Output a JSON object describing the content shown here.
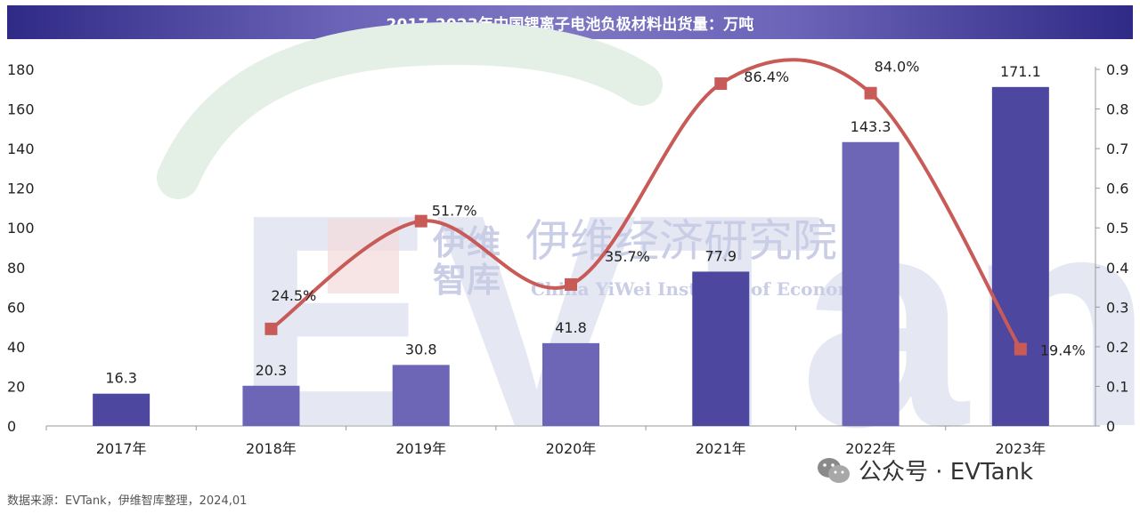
{
  "chart_data": {
    "type": "bar",
    "title": "2017-2023年中国锂离子电池负极材料出货量：万吨",
    "categories": [
      "2017年",
      "2018年",
      "2019年",
      "2020年",
      "2021年",
      "2022年",
      "2023年"
    ],
    "series": [
      {
        "type": "bar",
        "values": [
          16.3,
          20.3,
          30.8,
          41.8,
          77.9,
          143.3,
          171.1
        ],
        "labels": [
          "16.3",
          "20.3",
          "30.8",
          "41.8",
          "77.9",
          "143.3",
          "171.1"
        ],
        "axis": "left",
        "colors": [
          "#4e47a0",
          "#6d65b5",
          "#6d65b5",
          "#6d65b5",
          "#4e47a0",
          "#6d65b5",
          "#4e47a0"
        ]
      },
      {
        "type": "line",
        "values": [
          null,
          0.245,
          0.517,
          0.357,
          0.864,
          0.84,
          0.194
        ],
        "labels": [
          "",
          "24.5%",
          "51.7%",
          "35.7%",
          "86.4%",
          "84.0%",
          "19.4%"
        ],
        "axis": "right",
        "color": "#c85a57"
      }
    ],
    "yleft": {
      "min": 0,
      "max": 180,
      "ticks": [
        "0",
        "20",
        "40",
        "60",
        "80",
        "100",
        "120",
        "140",
        "160",
        "180"
      ]
    },
    "yright": {
      "min": 0,
      "max": 0.9,
      "ticks": [
        "0",
        "0.1",
        "0.2",
        "0.3",
        "0.4",
        "0.5",
        "0.6",
        "0.7",
        "0.8",
        "0.9"
      ]
    },
    "grid": false,
    "legend": "none"
  },
  "watermark": {
    "big": "EVTank",
    "brand_cn": "伊维经济研究院",
    "brand_cn_short": [
      "伊维",
      "智库"
    ],
    "brand_en": "China YiWei Institute of Economics"
  },
  "footer": {
    "source": "数据来源：EVTank，伊维智库整理，2024,01",
    "wechat": "公众号 · EVTank",
    "wechat_icon": "wechat-icon"
  }
}
